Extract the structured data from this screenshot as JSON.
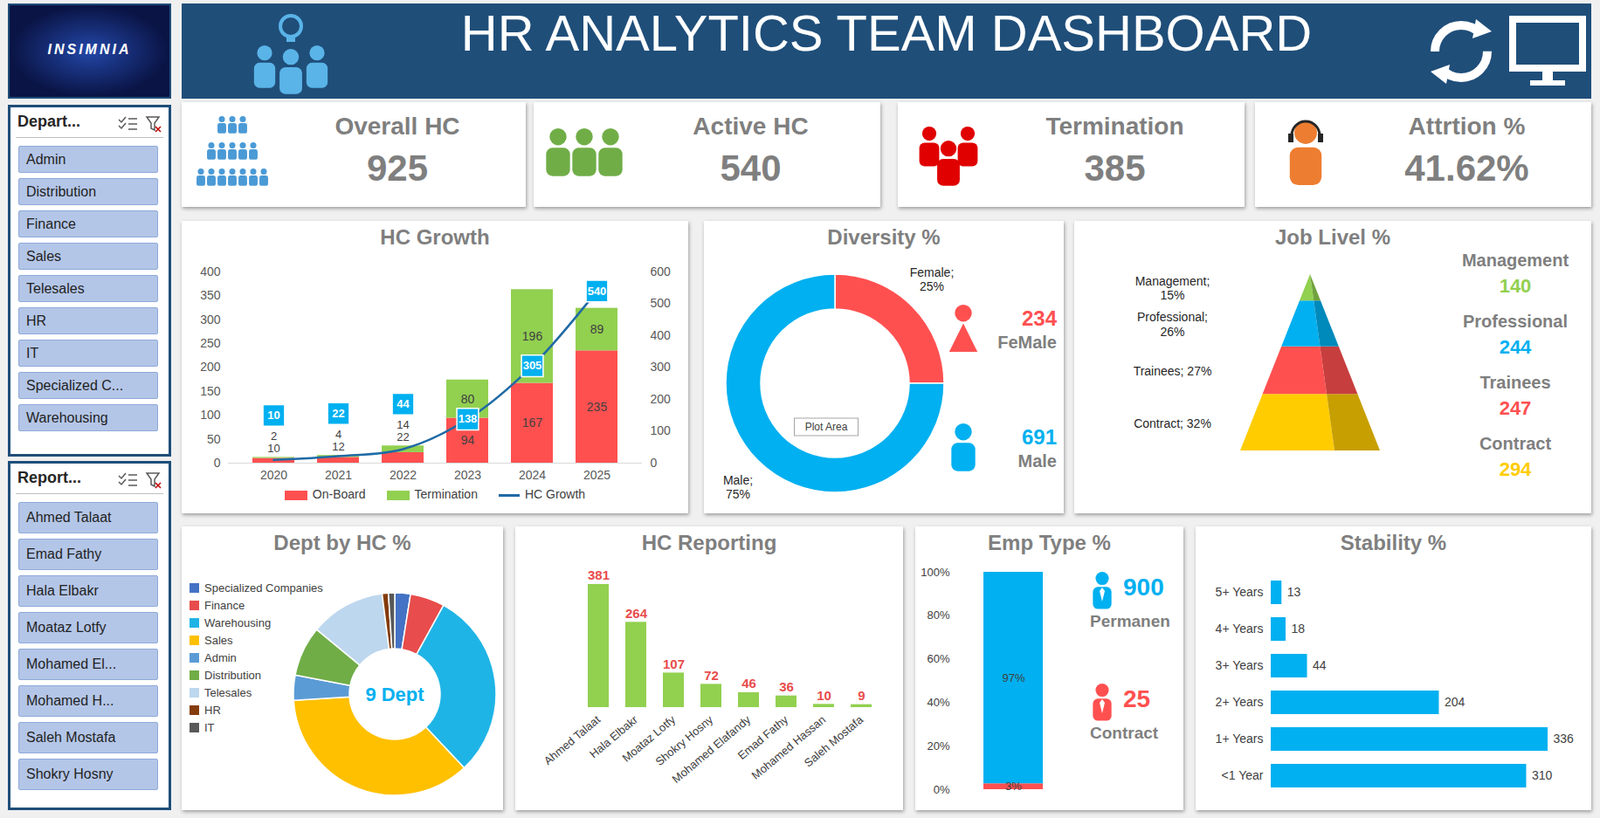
{
  "logo": "INSIMNIA",
  "header": {
    "title": "HR ANALYTICS TEAM DASHBOARD"
  },
  "slicers": [
    {
      "title": "Depart...",
      "items": [
        "Admin",
        "Distribution",
        "Finance",
        "Sales",
        "Telesales",
        "HR",
        "IT",
        "Specialized C...",
        "Warehousing"
      ]
    },
    {
      "title": "Report...",
      "items": [
        "Ahmed Talaat",
        "Emad Fathy",
        "Hala Elbakr",
        "Moataz Lotfy",
        "Mohamed El...",
        "Mohamed H...",
        "Saleh Mostafa",
        "Shokry Hosny"
      ]
    }
  ],
  "kpis": [
    {
      "label": "Overall HC",
      "value": 925
    },
    {
      "label": "Active HC",
      "value": 540
    },
    {
      "label": "Termination",
      "value": 385
    },
    {
      "label": "Attrtion %",
      "value": 41.62,
      "value_label": "41.62%"
    }
  ],
  "chart_data": [
    {
      "type": "bar",
      "title": "HC Growth",
      "categories": [
        "2020",
        "2021",
        "2022",
        "2023",
        "2024",
        "2025"
      ],
      "stacked": true,
      "data_labels": true,
      "legend": "bottom",
      "ylim": [
        0,
        400
      ],
      "yticks": [
        0,
        50,
        100,
        150,
        200,
        250,
        300,
        350,
        400
      ],
      "y2lim": [
        0,
        600
      ],
      "y2ticks": [
        0,
        100,
        200,
        300,
        400,
        500,
        600
      ],
      "series": [
        {
          "name": "On-Board",
          "color": "#ff5050",
          "values": [
            10,
            12,
            22,
            94,
            167,
            235
          ]
        },
        {
          "name": "Termination",
          "color": "#92d050",
          "values": [
            2,
            4,
            14,
            80,
            196,
            89
          ]
        },
        {
          "name": "HC Growth",
          "type": "line",
          "axis": "y2",
          "color": "#1f6aa5",
          "values": [
            10,
            22,
            44,
            138,
            305,
            540
          ]
        }
      ]
    },
    {
      "type": "donut",
      "title": "Diversity %",
      "categories": [
        "Female",
        "Male"
      ],
      "values": [
        25,
        75
      ],
      "value_labels": [
        "Female; 25%",
        "Male; 75%"
      ],
      "colors": [
        "#ff5050",
        "#00b0f0"
      ],
      "counts": [
        234,
        691
      ],
      "count_labels": [
        "FeMale",
        "Male"
      ],
      "annotations": [
        "Plot Area"
      ]
    },
    {
      "type": "pyramid",
      "title": "Job Livel %",
      "categories": [
        "Management",
        "Professional",
        "Trainees",
        "Contract"
      ],
      "values": [
        15,
        26,
        27,
        32
      ],
      "value_labels": [
        "Management; 15%",
        "Professional; 26%",
        "Trainees; 27%",
        "Contract; 32%"
      ],
      "colors": [
        "#92d050",
        "#00b0f0",
        "#ff5050",
        "#ffcc00"
      ],
      "counts": [
        140,
        244,
        247,
        294
      ]
    },
    {
      "type": "donut",
      "title": "Dept by HC %",
      "categories": [
        "Specialized Companies",
        "Finance",
        "Warehousing",
        "Sales",
        "Admin",
        "Distribution",
        "Telesales",
        "HR",
        "IT"
      ],
      "values": [
        2.5,
        5.5,
        30,
        36,
        4,
        8,
        12,
        1,
        1
      ],
      "colors": [
        "#4472c4",
        "#e84c4c",
        "#1fb4e6",
        "#ffc000",
        "#5b9bd5",
        "#70ad47",
        "#bdd7ee",
        "#843c0c",
        "#595959"
      ],
      "center_label": "9 Dept",
      "legend": "left"
    },
    {
      "type": "bar",
      "title": "HC Reporting",
      "categories": [
        "Ahmed Talaat",
        "Hala Elbakr",
        "Moataz Lotfy",
        "Shokry Hosny",
        "Mohamed Elafandy",
        "Emad Fathy",
        "Mohamed Hassan",
        "Saleh Mostafa"
      ],
      "values": [
        381,
        264,
        107,
        72,
        46,
        36,
        10,
        9
      ],
      "color": "#92d050",
      "data_labels": true,
      "tick_labels": "x"
    },
    {
      "type": "bar",
      "title": "Emp Type %",
      "stacked": true,
      "data_labels": true,
      "tick_labels": "y",
      "categories": [
        null
      ],
      "ylim": [
        0,
        100
      ],
      "yticks": [
        {
          "value": 0,
          "label": "0%"
        },
        {
          "value": 20,
          "label": "20%"
        },
        {
          "value": 40,
          "label": "40%"
        },
        {
          "value": 60,
          "label": "60%"
        },
        {
          "value": 80,
          "label": "80%"
        },
        {
          "value": 100,
          "label": "100%"
        }
      ],
      "series": [
        {
          "name": "Contract",
          "color": "#ff5050",
          "values": [
            2.7
          ],
          "value_labels": [
            "3%"
          ],
          "count": 25
        },
        {
          "name": "Permanen",
          "color": "#00b0f0",
          "values": [
            97.3
          ],
          "value_labels": [
            "97%"
          ],
          "count": 900
        }
      ]
    },
    {
      "type": "bar",
      "title": "Stability %",
      "orientation": "horizontal",
      "data_labels": true,
      "tick_labels": "y",
      "categories": [
        "5+ Years",
        "4+ Years",
        "3+ Years",
        "2+ Years",
        "1+ Years",
        "<1 Year"
      ],
      "values": [
        13,
        18,
        44,
        204,
        336,
        310
      ],
      "color": "#00b0f0"
    }
  ]
}
